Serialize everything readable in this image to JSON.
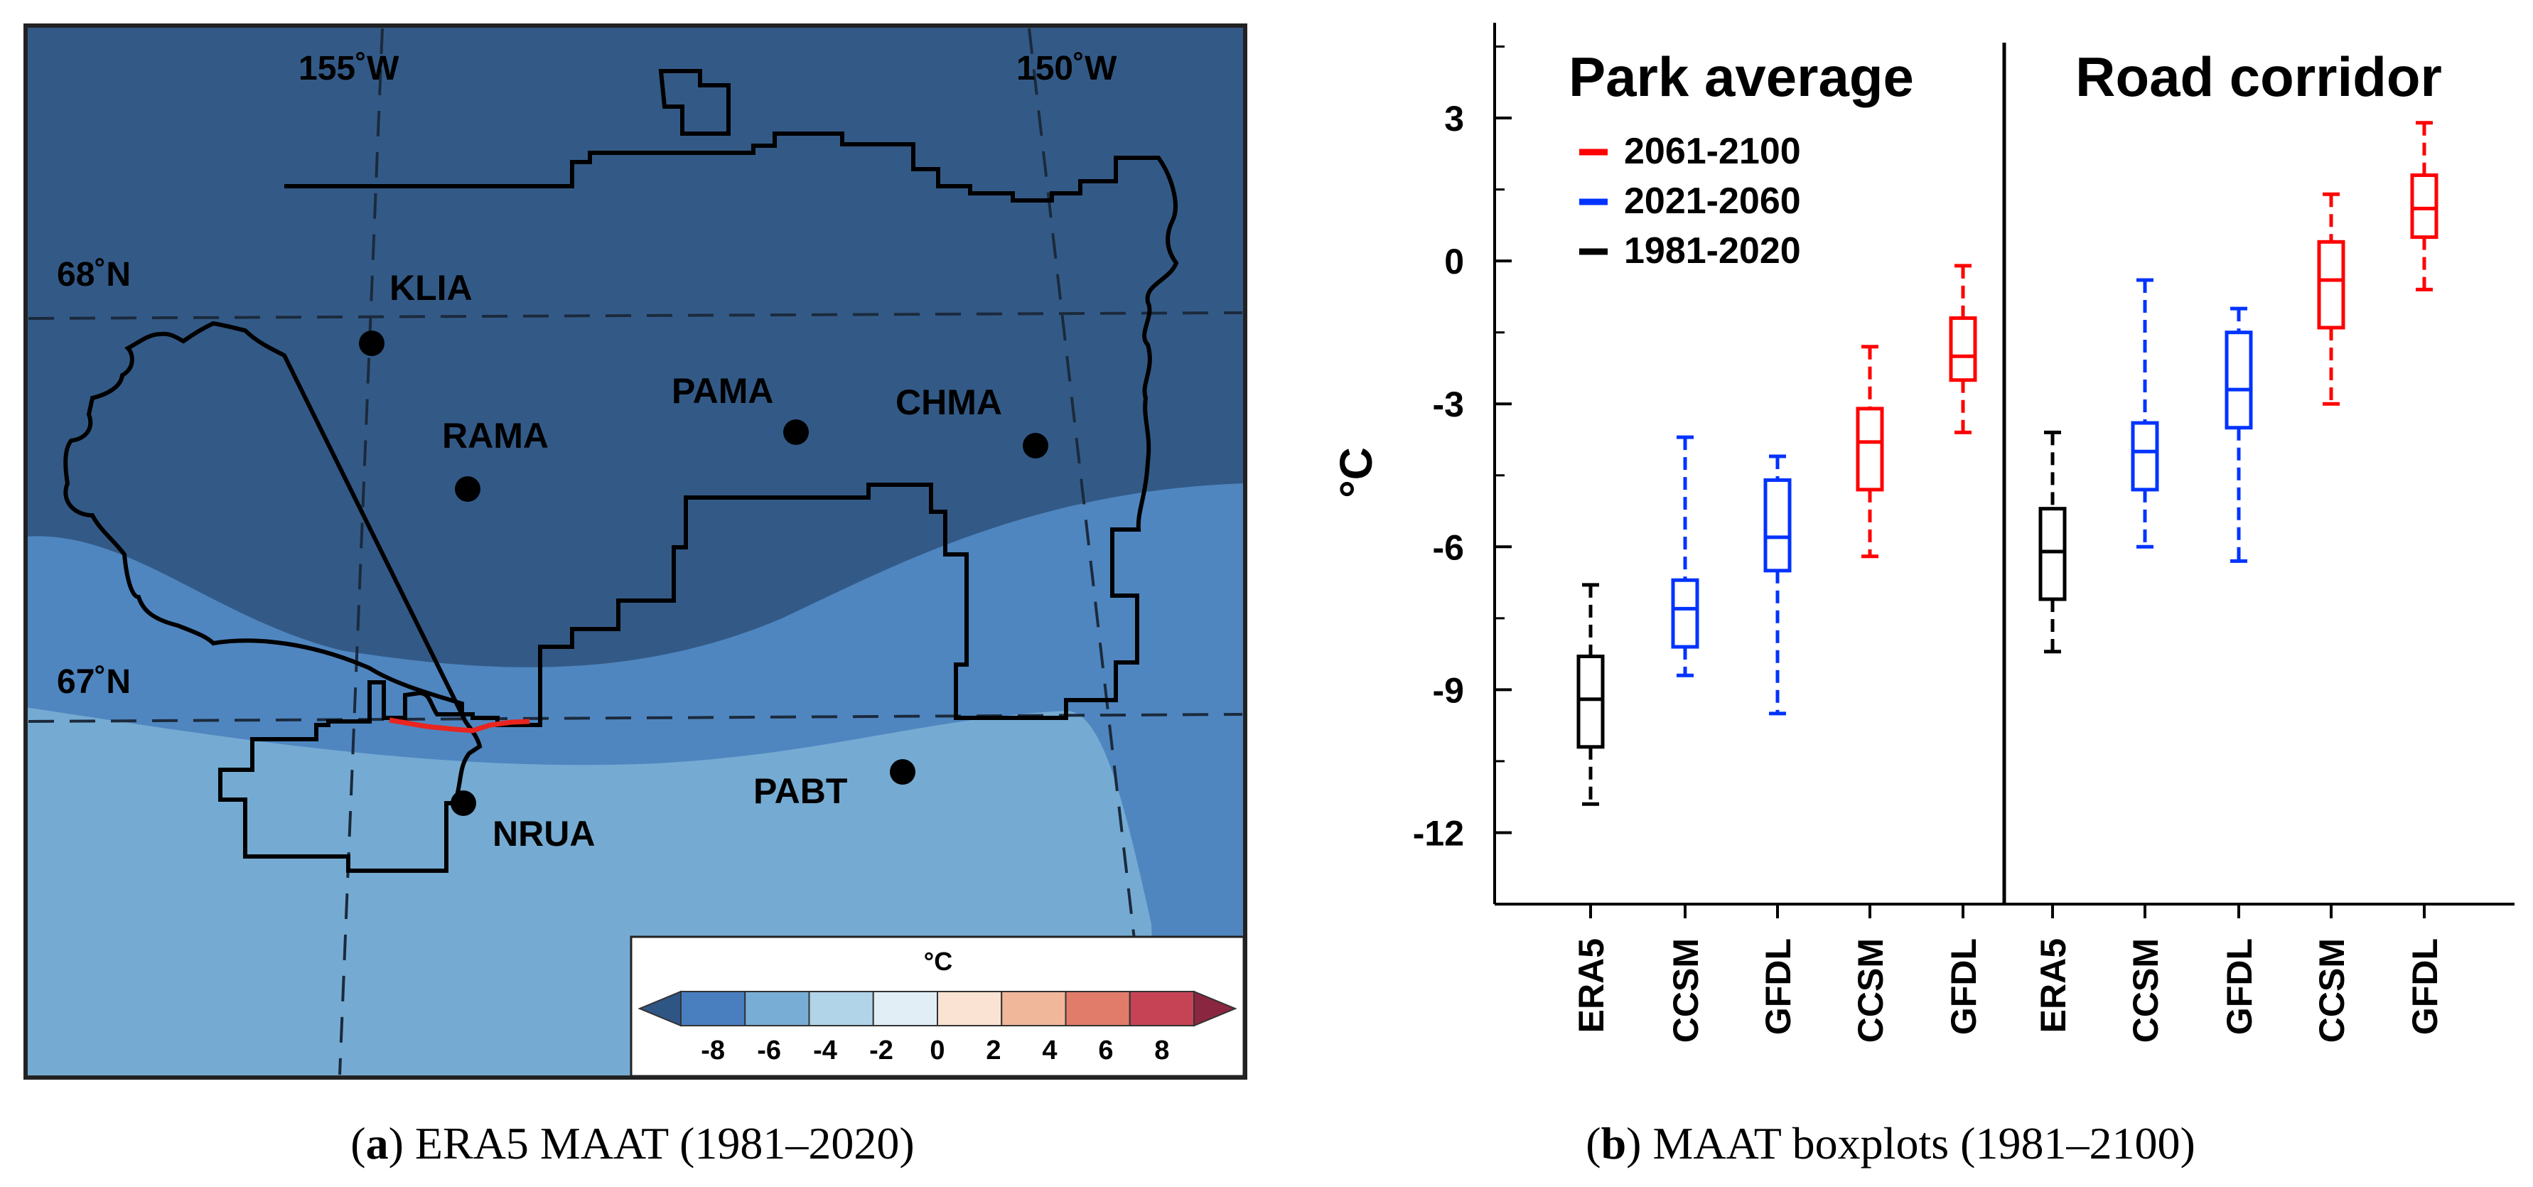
{
  "map_panel": {
    "caption_letter": "a",
    "caption_rest": " ERA5 MAAT (1981–2020)",
    "lon_labels": [
      "155˚W",
      "150˚W"
    ],
    "lat_labels": [
      "68˚N",
      "67˚N"
    ],
    "sites": [
      "KLIA",
      "RAMA",
      "PAMA",
      "CHMA",
      "NRUA",
      "PABT"
    ],
    "colorbar": {
      "unit": "°C",
      "ticks": [
        "-8",
        "-6",
        "-4",
        "-2",
        "0",
        "2",
        "4",
        "6",
        "8"
      ],
      "colors": [
        "#2f5584",
        "#4a7fbf",
        "#78aed5",
        "#b1d4e8",
        "#e2eef5",
        "#fbe3d4",
        "#f1b79b",
        "#e17c6b",
        "#c64356",
        "#8b2640"
      ]
    },
    "region_colors": [
      "#335a87",
      "#4f86c0",
      "#75abd2"
    ],
    "road_color": "#e8251f"
  },
  "chart_data": {
    "type": "boxplot",
    "ylabel": "°C",
    "ylim": [
      -13.5,
      5
    ],
    "yticks": [
      3,
      0,
      -3,
      -6,
      -9,
      -12
    ],
    "ytick_labels": [
      "3",
      "0",
      "-3",
      "-6",
      "-9",
      "-12"
    ],
    "categories": [
      "ERA5",
      "CCSM",
      "GFDL",
      "CCSM",
      "GFDL",
      "ERA5",
      "CCSM",
      "GFDL",
      "CCSM",
      "GFDL"
    ],
    "panels": [
      {
        "title": "Park average",
        "boxes": [
          {
            "label": "ERA5",
            "period": "1981-2020",
            "whisker_low": -11.4,
            "q1": -10.2,
            "median": -9.2,
            "q3": -8.3,
            "whisker_high": -6.8
          },
          {
            "label": "CCSM",
            "period": "2021-2060",
            "whisker_low": -8.7,
            "q1": -8.1,
            "median": -7.3,
            "q3": -6.7,
            "whisker_high": -3.7
          },
          {
            "label": "GFDL",
            "period": "2021-2060",
            "whisker_low": -9.5,
            "q1": -6.5,
            "median": -5.8,
            "q3": -4.6,
            "whisker_high": -4.1
          },
          {
            "label": "CCSM",
            "period": "2061-2100",
            "whisker_low": -6.2,
            "q1": -4.8,
            "median": -3.8,
            "q3": -3.1,
            "whisker_high": -1.8
          },
          {
            "label": "GFDL",
            "period": "2061-2100",
            "whisker_low": -3.6,
            "q1": -2.5,
            "median": -2.0,
            "q3": -1.2,
            "whisker_high": -0.1
          }
        ]
      },
      {
        "title": "Road corridor",
        "boxes": [
          {
            "label": "ERA5",
            "period": "1981-2020",
            "whisker_low": -8.2,
            "q1": -7.1,
            "median": -6.1,
            "q3": -5.2,
            "whisker_high": -3.6
          },
          {
            "label": "CCSM",
            "period": "2021-2060",
            "whisker_low": -6.0,
            "q1": -4.8,
            "median": -4.0,
            "q3": -3.4,
            "whisker_high": -0.4
          },
          {
            "label": "GFDL",
            "period": "2021-2060",
            "whisker_low": -6.3,
            "q1": -3.5,
            "median": -2.7,
            "q3": -1.5,
            "whisker_high": -1.0
          },
          {
            "label": "CCSM",
            "period": "2061-2100",
            "whisker_low": -3.0,
            "q1": -1.4,
            "median": -0.4,
            "q3": 0.4,
            "whisker_high": 1.4
          },
          {
            "label": "GFDL",
            "period": "2061-2100",
            "whisker_low": -0.6,
            "q1": 0.5,
            "median": 1.1,
            "q3": 1.8,
            "whisker_high": 2.9
          }
        ]
      }
    ],
    "legend": [
      {
        "label": "2061-2100",
        "color": "#ff0000"
      },
      {
        "label": "2021-2060",
        "color": "#0033ff"
      },
      {
        "label": "1981-2020",
        "color": "#000000"
      }
    ],
    "legend_position": "top-left",
    "caption_letter": "b",
    "caption_rest": " MAAT boxplots (1981–2100)"
  }
}
